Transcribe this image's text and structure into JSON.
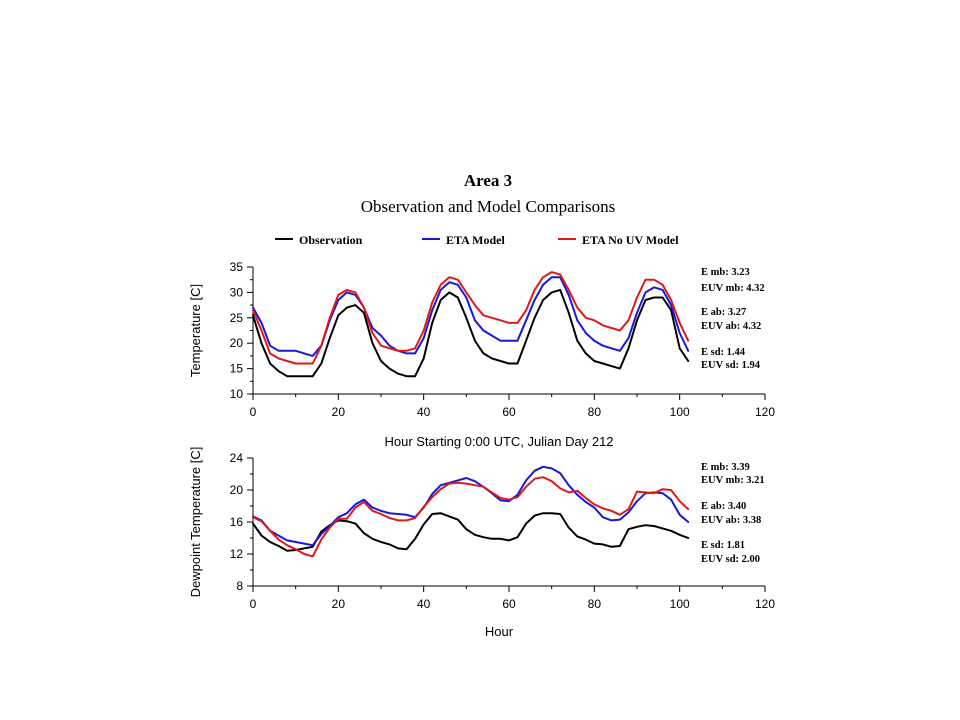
{
  "colors": {
    "observation": "#000000",
    "eta_model": "#1818d8",
    "eta_no_uv_model": "#e01818"
  },
  "legend": [
    {
      "label": "Observation",
      "color": "#000000"
    },
    {
      "label": "ETA Model",
      "color": "#1818d8"
    },
    {
      "label": "ETA No UV Model",
      "color": "#e01818"
    }
  ],
  "chart_data": [
    {
      "type": "line",
      "title": "Area 3",
      "subtitle": "Observation and Model Comparisons",
      "xlabel": "Hour Starting 0:00 UTC, Julian Day 212",
      "ylabel": "Temperature [C]",
      "xlim": [
        0,
        120
      ],
      "ylim": [
        10,
        35
      ],
      "xticks": [
        0,
        20,
        40,
        60,
        80,
        100,
        120
      ],
      "yticks": [
        10,
        15,
        20,
        25,
        30,
        35
      ],
      "grid": false,
      "legend_position": "top",
      "stats": [
        "E mb: 3.23",
        "EUV mb: 4.32",
        "E ab: 3.27",
        "EUV ab: 4.32",
        "E sd: 1.44",
        "EUV sd: 1.94"
      ],
      "series": [
        {
          "name": "Observation",
          "x": [
            0,
            2,
            4,
            6,
            8,
            10,
            12,
            14,
            16,
            18,
            20,
            22,
            24,
            26,
            28,
            30,
            32,
            34,
            36,
            38,
            40,
            42,
            44,
            46,
            48,
            50,
            52,
            54,
            56,
            58,
            60,
            62,
            64,
            66,
            68,
            70,
            72,
            74,
            76,
            78,
            80,
            82,
            84,
            86,
            88,
            90,
            92,
            94,
            96,
            98,
            100,
            102
          ],
          "y": [
            25.5,
            20,
            16,
            14.5,
            13.5,
            13.5,
            13.5,
            13.5,
            16,
            21,
            25.5,
            27,
            27.5,
            26,
            20,
            16.5,
            15,
            14,
            13.5,
            13.5,
            17,
            24,
            28.5,
            30,
            29,
            25,
            20.5,
            18,
            17,
            16.5,
            16,
            16,
            20.5,
            25,
            28.5,
            30,
            30.5,
            26,
            20.5,
            18,
            16.5,
            16,
            15.5,
            15,
            19,
            24.5,
            28.5,
            29,
            29,
            26.5,
            19,
            16.5
          ]
        },
        {
          "name": "ETA Model",
          "x": [
            0,
            2,
            4,
            6,
            8,
            10,
            12,
            14,
            16,
            18,
            20,
            22,
            24,
            26,
            28,
            30,
            32,
            34,
            36,
            38,
            40,
            42,
            44,
            46,
            48,
            50,
            52,
            54,
            56,
            58,
            60,
            62,
            64,
            66,
            68,
            70,
            72,
            74,
            76,
            78,
            80,
            82,
            84,
            86,
            88,
            90,
            92,
            94,
            96,
            98,
            100,
            102
          ],
          "y": [
            27,
            24,
            19.5,
            18.5,
            18.5,
            18.5,
            18,
            17.5,
            19.5,
            24.5,
            28.5,
            30,
            29.5,
            27,
            23,
            21.5,
            19.5,
            18.5,
            18,
            18,
            21,
            26.5,
            30.5,
            32,
            31.5,
            29,
            24.5,
            22.5,
            21.5,
            20.5,
            20.5,
            20.5,
            24.5,
            28.5,
            31.5,
            33,
            33,
            29.5,
            24.5,
            22,
            20.5,
            19.5,
            19,
            18.5,
            21,
            26,
            30,
            31,
            30.5,
            27.5,
            22,
            18.5
          ]
        },
        {
          "name": "ETA No UV Model",
          "x": [
            0,
            2,
            4,
            6,
            8,
            10,
            12,
            14,
            16,
            18,
            20,
            22,
            24,
            26,
            28,
            30,
            32,
            34,
            36,
            38,
            40,
            42,
            44,
            46,
            48,
            50,
            52,
            54,
            56,
            58,
            60,
            62,
            64,
            66,
            68,
            70,
            72,
            74,
            76,
            78,
            80,
            82,
            84,
            86,
            88,
            90,
            92,
            94,
            96,
            98,
            100,
            102
          ],
          "y": [
            26.5,
            22.5,
            18,
            17,
            16.5,
            16,
            16,
            16,
            19.5,
            25,
            29.5,
            30.5,
            30,
            27,
            22,
            19.5,
            19,
            18.5,
            18.5,
            19,
            22.5,
            28,
            31.5,
            33,
            32.5,
            30,
            27.5,
            25.5,
            25,
            24.5,
            24,
            24,
            26.5,
            30.5,
            33,
            34,
            33.5,
            30.5,
            27,
            25,
            24.5,
            23.5,
            23,
            22.5,
            24.5,
            29,
            32.5,
            32.5,
            31.5,
            28.5,
            24,
            20.5
          ]
        }
      ]
    },
    {
      "type": "line",
      "title": "",
      "xlabel": "Hour",
      "ylabel": "Dewpoint Temperature [C]",
      "xlim": [
        0,
        120
      ],
      "ylim": [
        8,
        24
      ],
      "xticks": [
        0,
        20,
        40,
        60,
        80,
        100,
        120
      ],
      "yticks": [
        8,
        12,
        16,
        20,
        24
      ],
      "grid": false,
      "legend_position": "none",
      "stats": [
        "E mb: 3.39",
        "EUV mb: 3.21",
        "E ab: 3.40",
        "EUV ab: 3.38",
        "E sd: 1.81",
        "EUV sd: 2.00"
      ],
      "series": [
        {
          "name": "Observation",
          "x": [
            0,
            2,
            4,
            6,
            8,
            10,
            12,
            14,
            16,
            18,
            20,
            22,
            24,
            26,
            28,
            30,
            32,
            34,
            36,
            38,
            40,
            42,
            44,
            46,
            48,
            50,
            52,
            54,
            56,
            58,
            60,
            62,
            64,
            66,
            68,
            70,
            72,
            74,
            76,
            78,
            80,
            82,
            84,
            86,
            88,
            90,
            92,
            94,
            96,
            98,
            100,
            102
          ],
          "y": [
            15.8,
            14.3,
            13.5,
            13,
            12.4,
            12.5,
            12.7,
            12.9,
            14.8,
            15.6,
            16.2,
            16.1,
            15.8,
            14.6,
            13.9,
            13.5,
            13.2,
            12.7,
            12.6,
            13.9,
            15.7,
            17,
            17.1,
            16.7,
            16.3,
            15.1,
            14.4,
            14.1,
            13.9,
            13.9,
            13.7,
            14.1,
            15.8,
            16.8,
            17.1,
            17.1,
            17,
            15.3,
            14.2,
            13.8,
            13.3,
            13.2,
            12.9,
            13,
            15.1,
            15.4,
            15.6,
            15.5,
            15.2,
            14.9,
            14.4,
            14
          ]
        },
        {
          "name": "ETA Model",
          "x": [
            0,
            2,
            4,
            6,
            8,
            10,
            12,
            14,
            16,
            18,
            20,
            22,
            24,
            26,
            28,
            30,
            32,
            34,
            36,
            38,
            40,
            42,
            44,
            46,
            48,
            50,
            52,
            54,
            56,
            58,
            60,
            62,
            64,
            66,
            68,
            70,
            72,
            74,
            76,
            78,
            80,
            82,
            84,
            86,
            88,
            90,
            92,
            94,
            96,
            98,
            100,
            102
          ],
          "y": [
            16.7,
            16.2,
            14.9,
            14.3,
            13.7,
            13.5,
            13.3,
            13.1,
            14.5,
            15.5,
            16.6,
            17.1,
            18.2,
            18.8,
            17.8,
            17.4,
            17.1,
            17,
            16.9,
            16.6,
            17.8,
            19.5,
            20.6,
            20.9,
            21.2,
            21.5,
            21.1,
            20.4,
            19.6,
            18.7,
            18.6,
            19.4,
            21.2,
            22.4,
            22.9,
            22.7,
            22.1,
            20.6,
            19.4,
            18.5,
            17.8,
            16.6,
            16.2,
            16.3,
            17.2,
            18.6,
            19.6,
            19.7,
            19.6,
            18.8,
            16.9,
            16
          ]
        },
        {
          "name": "ETA No UV Model",
          "x": [
            0,
            2,
            4,
            6,
            8,
            10,
            12,
            14,
            16,
            18,
            20,
            22,
            24,
            26,
            28,
            30,
            32,
            34,
            36,
            38,
            40,
            42,
            44,
            46,
            48,
            50,
            52,
            54,
            56,
            58,
            60,
            62,
            64,
            66,
            68,
            70,
            72,
            74,
            76,
            78,
            80,
            82,
            84,
            86,
            88,
            90,
            92,
            94,
            96,
            98,
            100,
            102
          ],
          "y": [
            16.6,
            16.1,
            14.9,
            13.8,
            13.1,
            12.6,
            12,
            11.7,
            13.8,
            15.3,
            16.4,
            16.4,
            17.8,
            18.5,
            17.4,
            17,
            16.5,
            16.2,
            16.2,
            16.5,
            17.9,
            19.1,
            20.1,
            20.8,
            20.9,
            20.8,
            20.6,
            20.4,
            19.7,
            19,
            18.8,
            19.1,
            20.4,
            21.4,
            21.6,
            21.1,
            20.2,
            19.7,
            19.9,
            19,
            18.2,
            17.7,
            17.4,
            16.9,
            17.6,
            19.8,
            19.7,
            19.6,
            20.1,
            20,
            18.6,
            17.6
          ]
        }
      ]
    }
  ]
}
